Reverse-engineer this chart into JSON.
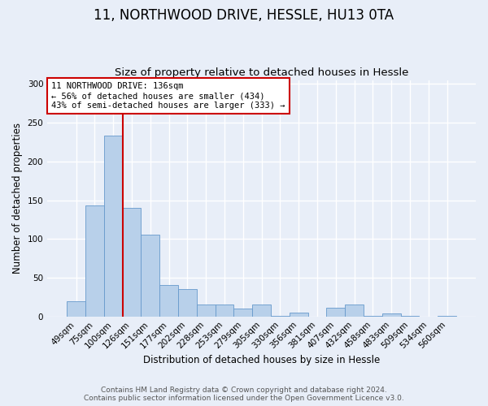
{
  "title": "11, NORTHWOOD DRIVE, HESSLE, HU13 0TA",
  "subtitle": "Size of property relative to detached houses in Hessle",
  "xlabel": "Distribution of detached houses by size in Hessle",
  "ylabel": "Number of detached properties",
  "categories": [
    "49sqm",
    "75sqm",
    "100sqm",
    "126sqm",
    "151sqm",
    "177sqm",
    "202sqm",
    "228sqm",
    "253sqm",
    "279sqm",
    "305sqm",
    "330sqm",
    "356sqm",
    "381sqm",
    "407sqm",
    "432sqm",
    "458sqm",
    "483sqm",
    "509sqm",
    "534sqm",
    "560sqm"
  ],
  "values": [
    20,
    143,
    233,
    140,
    105,
    41,
    35,
    15,
    15,
    10,
    15,
    1,
    5,
    0,
    11,
    15,
    1,
    4,
    1,
    0,
    1
  ],
  "bar_color": "#b8d0ea",
  "bar_edge_color": "#6699cc",
  "bar_width": 1.0,
  "property_line_color": "#cc0000",
  "property_line_x": 2.5,
  "annotation_title": "11 NORTHWOOD DRIVE: 136sqm",
  "annotation_line1": "← 56% of detached houses are smaller (434)",
  "annotation_line2": "43% of semi-detached houses are larger (333) →",
  "annotation_box_color": "#cc0000",
  "ylim": [
    0,
    305
  ],
  "yticks": [
    0,
    50,
    100,
    150,
    200,
    250,
    300
  ],
  "footer_line1": "Contains HM Land Registry data © Crown copyright and database right 2024.",
  "footer_line2": "Contains public sector information licensed under the Open Government Licence v3.0.",
  "bg_color": "#e8eef8",
  "plot_bg_color": "#e8eef8",
  "title_fontsize": 12,
  "subtitle_fontsize": 9.5,
  "label_fontsize": 8.5,
  "tick_fontsize": 7.5,
  "footer_fontsize": 6.5
}
